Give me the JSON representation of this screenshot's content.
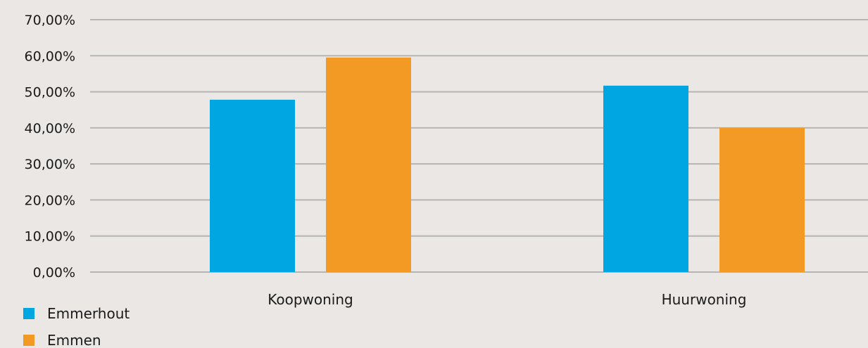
{
  "chart_data": {
    "type": "bar",
    "categories": [
      "Koopwoning",
      "Huurwoning"
    ],
    "series": [
      {
        "name": "Emmerhout",
        "values": [
          47.8,
          51.7
        ],
        "color": "#00a6e2"
      },
      {
        "name": "Emmen",
        "values": [
          59.5,
          40.0
        ],
        "color": "#f39a25"
      }
    ],
    "ylim": [
      0,
      70
    ],
    "yticks": [
      0,
      10,
      20,
      30,
      40,
      50,
      60,
      70
    ],
    "ytick_labels": [
      "0,00%",
      "10,00%",
      "20,00%",
      "30,00%",
      "40,00%",
      "50,00%",
      "60,00%",
      "70,00%"
    ],
    "grid": true,
    "gridline_color": "#b5b5b5",
    "legend_position": "bottom-left"
  }
}
